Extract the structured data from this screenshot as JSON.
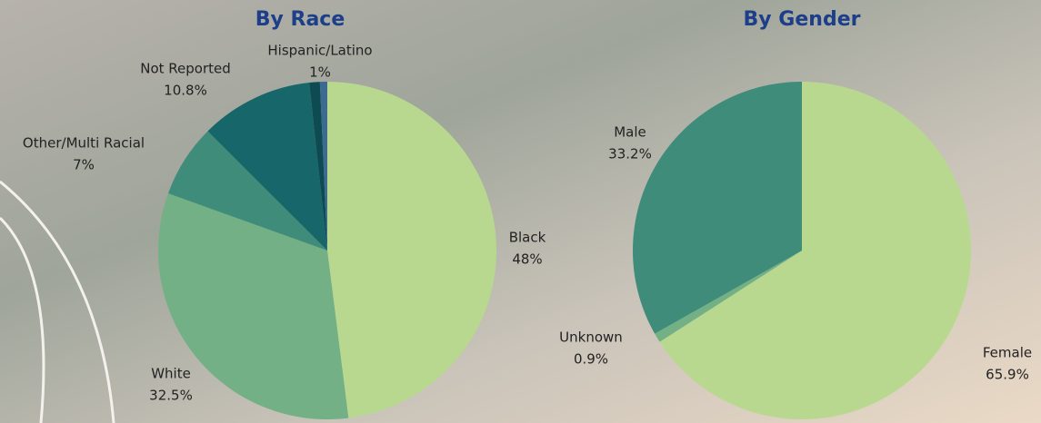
{
  "chart_data": [
    {
      "type": "pie",
      "title": "By Race",
      "categories": [
        "Black",
        "White",
        "Other/Multi Racial",
        "Not Reported",
        "Hispanic/Latino",
        null
      ],
      "values": [
        48,
        32.5,
        7,
        10.8,
        1,
        0.7
      ],
      "value_labels": [
        "48%",
        "32.5%",
        "7%",
        "10.8%",
        "1%",
        null
      ],
      "colors": [
        "#b9d88f",
        "#74b085",
        "#3f8c7a",
        "#17676a",
        "#0d4a52",
        "#3d6a8f"
      ]
    },
    {
      "type": "pie",
      "title": "By Gender",
      "categories": [
        "Female",
        "Unknown",
        "Male"
      ],
      "values": [
        65.9,
        0.9,
        33.2
      ],
      "value_labels": [
        "65.9%",
        "0.9%",
        "33.2%"
      ],
      "colors": [
        "#b9d88f",
        "#74b085",
        "#3f8c7a"
      ]
    }
  ]
}
